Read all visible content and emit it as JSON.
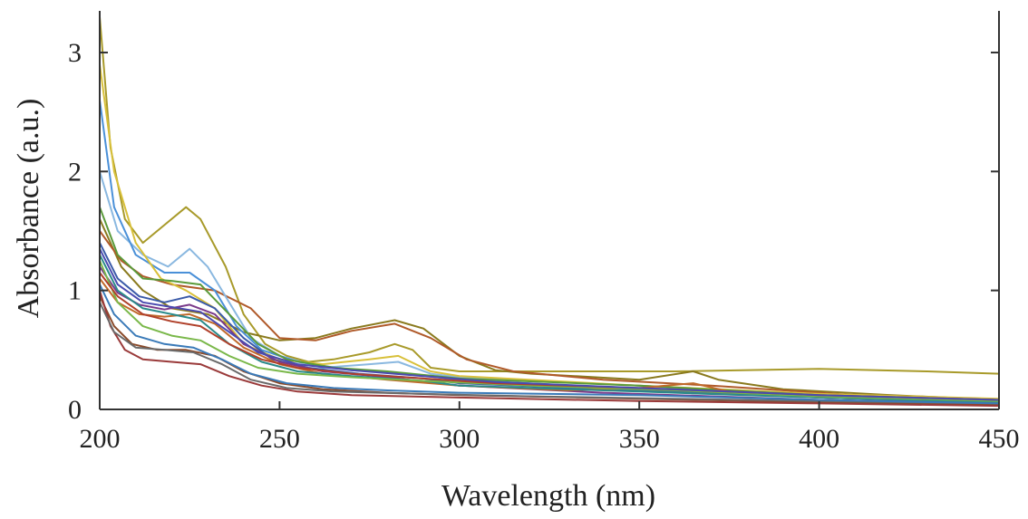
{
  "chart_data": {
    "type": "line",
    "xlabel": "Wavelength (nm)",
    "ylabel": "Absorbance (a.u.)",
    "xlim": [
      200,
      450
    ],
    "ylim": [
      0,
      3.35
    ],
    "xticks": [
      200,
      250,
      300,
      350,
      400,
      450
    ],
    "yticks": [
      0,
      1,
      2,
      3
    ],
    "grid": false,
    "legend": "none",
    "series": [
      {
        "color": "#a89a2a",
        "points": [
          [
            200,
            3.3
          ],
          [
            203,
            2.2
          ],
          [
            207,
            1.6
          ],
          [
            212,
            1.4
          ],
          [
            218,
            1.55
          ],
          [
            224,
            1.7
          ],
          [
            228,
            1.6
          ],
          [
            235,
            1.2
          ],
          [
            240,
            0.8
          ],
          [
            246,
            0.55
          ],
          [
            252,
            0.45
          ],
          [
            258,
            0.4
          ],
          [
            265,
            0.42
          ],
          [
            275,
            0.48
          ],
          [
            282,
            0.55
          ],
          [
            287,
            0.5
          ],
          [
            292,
            0.35
          ],
          [
            300,
            0.32
          ],
          [
            320,
            0.32
          ],
          [
            360,
            0.32
          ],
          [
            400,
            0.34
          ],
          [
            430,
            0.32
          ],
          [
            450,
            0.3
          ]
        ]
      },
      {
        "color": "#8a7a1e",
        "points": [
          [
            200,
            1.6
          ],
          [
            206,
            1.2
          ],
          [
            212,
            1.0
          ],
          [
            220,
            0.85
          ],
          [
            230,
            0.8
          ],
          [
            240,
            0.65
          ],
          [
            250,
            0.58
          ],
          [
            260,
            0.6
          ],
          [
            270,
            0.68
          ],
          [
            282,
            0.75
          ],
          [
            290,
            0.68
          ],
          [
            300,
            0.45
          ],
          [
            310,
            0.33
          ],
          [
            320,
            0.3
          ],
          [
            350,
            0.25
          ],
          [
            365,
            0.32
          ],
          [
            372,
            0.25
          ],
          [
            390,
            0.17
          ],
          [
            420,
            0.12
          ],
          [
            450,
            0.08
          ]
        ]
      },
      {
        "color": "#b05a2a",
        "points": [
          [
            200,
            1.5
          ],
          [
            206,
            1.25
          ],
          [
            212,
            1.12
          ],
          [
            220,
            1.05
          ],
          [
            232,
            1.0
          ],
          [
            242,
            0.85
          ],
          [
            250,
            0.6
          ],
          [
            260,
            0.58
          ],
          [
            270,
            0.66
          ],
          [
            282,
            0.72
          ],
          [
            292,
            0.6
          ],
          [
            302,
            0.42
          ],
          [
            315,
            0.32
          ],
          [
            340,
            0.25
          ],
          [
            370,
            0.2
          ],
          [
            410,
            0.12
          ],
          [
            450,
            0.07
          ]
        ]
      },
      {
        "color": "#8ab8e0",
        "points": [
          [
            200,
            2.0
          ],
          [
            205,
            1.5
          ],
          [
            212,
            1.3
          ],
          [
            219,
            1.2
          ],
          [
            225,
            1.35
          ],
          [
            230,
            1.2
          ],
          [
            236,
            0.9
          ],
          [
            242,
            0.6
          ],
          [
            250,
            0.45
          ],
          [
            262,
            0.35
          ],
          [
            275,
            0.38
          ],
          [
            283,
            0.4
          ],
          [
            292,
            0.3
          ],
          [
            300,
            0.27
          ],
          [
            350,
            0.2
          ],
          [
            400,
            0.11
          ],
          [
            450,
            0.07
          ]
        ]
      },
      {
        "color": "#4a90d8",
        "points": [
          [
            200,
            2.6
          ],
          [
            204,
            1.7
          ],
          [
            210,
            1.3
          ],
          [
            218,
            1.15
          ],
          [
            225,
            1.15
          ],
          [
            232,
            1.0
          ],
          [
            238,
            0.7
          ],
          [
            245,
            0.5
          ],
          [
            255,
            0.4
          ],
          [
            270,
            0.33
          ],
          [
            285,
            0.3
          ],
          [
            300,
            0.25
          ],
          [
            350,
            0.17
          ],
          [
            400,
            0.1
          ],
          [
            450,
            0.06
          ]
        ]
      },
      {
        "color": "#d8c03a",
        "points": [
          [
            200,
            2.9
          ],
          [
            204,
            2.0
          ],
          [
            210,
            1.4
          ],
          [
            217,
            1.1
          ],
          [
            224,
            1.0
          ],
          [
            232,
            0.85
          ],
          [
            240,
            0.55
          ],
          [
            250,
            0.42
          ],
          [
            262,
            0.38
          ],
          [
            275,
            0.42
          ],
          [
            283,
            0.45
          ],
          [
            292,
            0.32
          ],
          [
            300,
            0.28
          ],
          [
            350,
            0.2
          ],
          [
            400,
            0.13
          ],
          [
            450,
            0.09
          ]
        ]
      },
      {
        "color": "#3a5aa8",
        "points": [
          [
            200,
            1.4
          ],
          [
            205,
            1.1
          ],
          [
            211,
            0.95
          ],
          [
            218,
            0.9
          ],
          [
            225,
            0.95
          ],
          [
            232,
            0.85
          ],
          [
            240,
            0.6
          ],
          [
            248,
            0.42
          ],
          [
            258,
            0.35
          ],
          [
            272,
            0.3
          ],
          [
            290,
            0.26
          ],
          [
            300,
            0.22
          ],
          [
            340,
            0.17
          ],
          [
            400,
            0.1
          ],
          [
            450,
            0.06
          ]
        ]
      },
      {
        "color": "#7a3a8a",
        "points": [
          [
            200,
            1.2
          ],
          [
            205,
            0.98
          ],
          [
            211,
            0.88
          ],
          [
            218,
            0.84
          ],
          [
            225,
            0.88
          ],
          [
            232,
            0.8
          ],
          [
            240,
            0.55
          ],
          [
            250,
            0.4
          ],
          [
            262,
            0.32
          ],
          [
            280,
            0.27
          ],
          [
            300,
            0.2
          ],
          [
            340,
            0.14
          ],
          [
            400,
            0.08
          ],
          [
            450,
            0.05
          ]
        ]
      },
      {
        "color": "#5a9a3a",
        "points": [
          [
            200,
            1.7
          ],
          [
            205,
            1.3
          ],
          [
            212,
            1.1
          ],
          [
            220,
            1.08
          ],
          [
            228,
            1.05
          ],
          [
            236,
            0.8
          ],
          [
            244,
            0.55
          ],
          [
            252,
            0.42
          ],
          [
            265,
            0.35
          ],
          [
            280,
            0.32
          ],
          [
            300,
            0.26
          ],
          [
            350,
            0.2
          ],
          [
            400,
            0.12
          ],
          [
            450,
            0.08
          ]
        ]
      },
      {
        "color": "#c06a2a",
        "points": [
          [
            200,
            1.1
          ],
          [
            205,
            0.9
          ],
          [
            211,
            0.8
          ],
          [
            218,
            0.78
          ],
          [
            225,
            0.8
          ],
          [
            232,
            0.72
          ],
          [
            240,
            0.52
          ],
          [
            250,
            0.38
          ],
          [
            262,
            0.3
          ],
          [
            280,
            0.25
          ],
          [
            300,
            0.2
          ],
          [
            330,
            0.16
          ],
          [
            350,
            0.18
          ],
          [
            365,
            0.22
          ],
          [
            375,
            0.15
          ],
          [
            400,
            0.1
          ],
          [
            450,
            0.06
          ]
        ]
      },
      {
        "color": "#2a8a8a",
        "points": [
          [
            200,
            1.3
          ],
          [
            205,
            1.0
          ],
          [
            212,
            0.85
          ],
          [
            220,
            0.8
          ],
          [
            228,
            0.75
          ],
          [
            236,
            0.55
          ],
          [
            245,
            0.4
          ],
          [
            255,
            0.32
          ],
          [
            270,
            0.28
          ],
          [
            290,
            0.24
          ],
          [
            300,
            0.2
          ],
          [
            350,
            0.15
          ],
          [
            400,
            0.1
          ],
          [
            450,
            0.06
          ]
        ]
      },
      {
        "color": "#8a4a2a",
        "points": [
          [
            200,
            0.95
          ],
          [
            204,
            0.7
          ],
          [
            209,
            0.55
          ],
          [
            216,
            0.5
          ],
          [
            224,
            0.5
          ],
          [
            232,
            0.45
          ],
          [
            240,
            0.32
          ],
          [
            250,
            0.22
          ],
          [
            262,
            0.17
          ],
          [
            280,
            0.14
          ],
          [
            300,
            0.12
          ],
          [
            350,
            0.09
          ],
          [
            400,
            0.06
          ],
          [
            450,
            0.04
          ]
        ]
      },
      {
        "color": "#9a3a3a",
        "points": [
          [
            200,
            1.0
          ],
          [
            203,
            0.7
          ],
          [
            207,
            0.5
          ],
          [
            212,
            0.42
          ],
          [
            220,
            0.4
          ],
          [
            228,
            0.38
          ],
          [
            236,
            0.28
          ],
          [
            245,
            0.2
          ],
          [
            255,
            0.15
          ],
          [
            270,
            0.12
          ],
          [
            300,
            0.1
          ],
          [
            350,
            0.07
          ],
          [
            400,
            0.05
          ],
          [
            450,
            0.03
          ]
        ]
      },
      {
        "color": "#6a6a6a",
        "points": [
          [
            200,
            0.9
          ],
          [
            204,
            0.65
          ],
          [
            210,
            0.52
          ],
          [
            218,
            0.5
          ],
          [
            226,
            0.48
          ],
          [
            234,
            0.38
          ],
          [
            242,
            0.25
          ],
          [
            252,
            0.18
          ],
          [
            265,
            0.15
          ],
          [
            290,
            0.13
          ],
          [
            320,
            0.11
          ],
          [
            360,
            0.09
          ],
          [
            400,
            0.07
          ],
          [
            450,
            0.05
          ]
        ]
      },
      {
        "color": "#3a7ab8",
        "points": [
          [
            200,
            1.05
          ],
          [
            204,
            0.8
          ],
          [
            210,
            0.62
          ],
          [
            218,
            0.55
          ],
          [
            226,
            0.52
          ],
          [
            234,
            0.42
          ],
          [
            242,
            0.3
          ],
          [
            252,
            0.22
          ],
          [
            265,
            0.18
          ],
          [
            280,
            0.16
          ],
          [
            300,
            0.14
          ],
          [
            350,
            0.12
          ],
          [
            400,
            0.08
          ],
          [
            450,
            0.05
          ]
        ]
      },
      {
        "color": "#7ab84a",
        "points": [
          [
            200,
            1.25
          ],
          [
            205,
            0.9
          ],
          [
            212,
            0.7
          ],
          [
            220,
            0.62
          ],
          [
            228,
            0.58
          ],
          [
            236,
            0.45
          ],
          [
            244,
            0.35
          ],
          [
            255,
            0.3
          ],
          [
            270,
            0.27
          ],
          [
            290,
            0.24
          ],
          [
            320,
            0.2
          ],
          [
            360,
            0.16
          ],
          [
            400,
            0.11
          ],
          [
            450,
            0.07
          ]
        ]
      },
      {
        "color": "#b0402a",
        "points": [
          [
            200,
            1.15
          ],
          [
            205,
            0.95
          ],
          [
            212,
            0.8
          ],
          [
            220,
            0.74
          ],
          [
            228,
            0.7
          ],
          [
            236,
            0.55
          ],
          [
            245,
            0.42
          ],
          [
            255,
            0.35
          ],
          [
            270,
            0.3
          ],
          [
            290,
            0.26
          ],
          [
            310,
            0.22
          ],
          [
            350,
            0.18
          ],
          [
            400,
            0.12
          ],
          [
            450,
            0.08
          ]
        ]
      },
      {
        "color": "#4a4ab0",
        "points": [
          [
            200,
            1.35
          ],
          [
            205,
            1.05
          ],
          [
            212,
            0.9
          ],
          [
            220,
            0.86
          ],
          [
            228,
            0.82
          ],
          [
            236,
            0.65
          ],
          [
            244,
            0.48
          ],
          [
            255,
            0.38
          ],
          [
            270,
            0.33
          ],
          [
            290,
            0.28
          ],
          [
            310,
            0.23
          ],
          [
            350,
            0.18
          ],
          [
            400,
            0.12
          ],
          [
            450,
            0.08
          ]
        ]
      }
    ]
  }
}
